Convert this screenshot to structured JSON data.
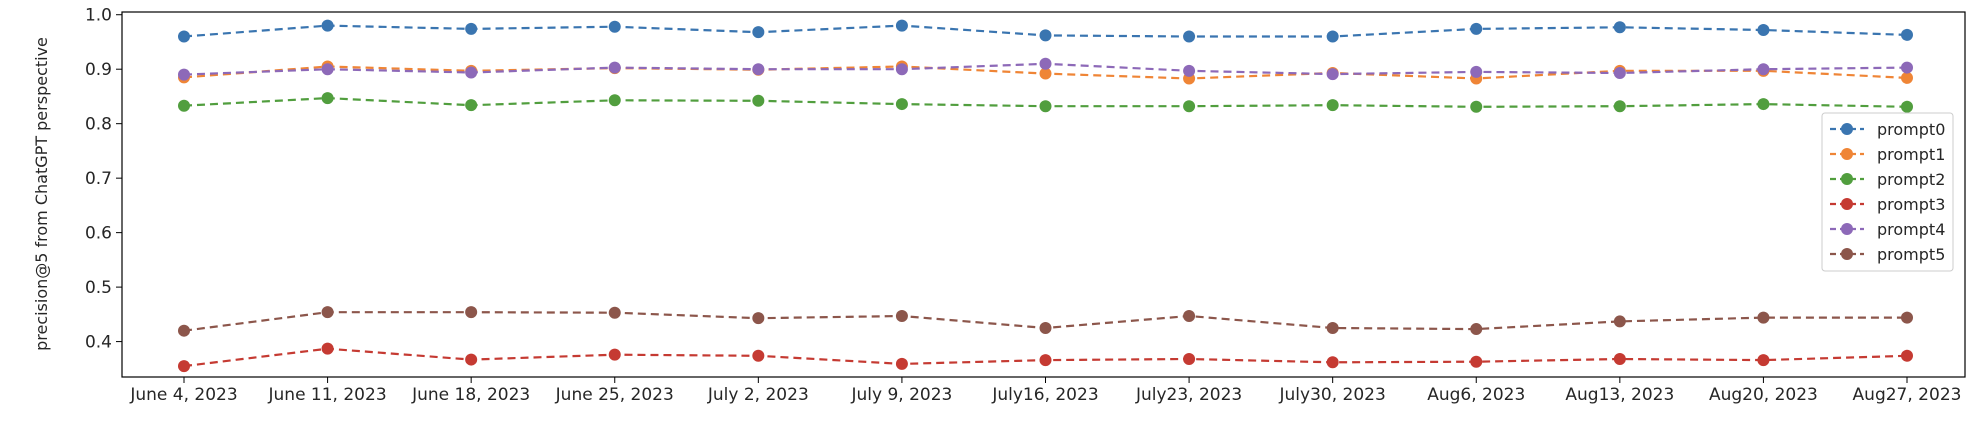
{
  "chart_data": {
    "type": "line",
    "title": "",
    "xlabel": "",
    "ylabel": "precision@5 from ChatGPT perspective",
    "categories": [
      "June 4, 2023",
      "June 11, 2023",
      "June 18, 2023",
      "June 25, 2023",
      "July 2, 2023",
      "July 9, 2023",
      "July16, 2023",
      "July23, 2023",
      "July30, 2023",
      "Aug6, 2023",
      "Aug13, 2023",
      "Aug20, 2023",
      "Aug27, 2023"
    ],
    "ylim": [
      0.335,
      1.005
    ],
    "yticks": [
      1.0,
      0.9,
      0.8,
      0.7,
      0.6,
      0.5,
      0.4
    ],
    "ytick_labels": [
      "1.0",
      "0.9",
      "0.8",
      "0.7",
      "0.6",
      "0.5",
      "0.4"
    ],
    "grid": false,
    "legend_position": "center-right",
    "line_style": "dashed",
    "marker": "circle",
    "series": [
      {
        "name": "prompt0",
        "color": "#3a75b0",
        "values": [
          0.96,
          0.98,
          0.974,
          0.978,
          0.968,
          0.98,
          0.962,
          0.96,
          0.96,
          0.974,
          0.977,
          0.972,
          0.963
        ]
      },
      {
        "name": "prompt1",
        "color": "#ef8536",
        "values": [
          0.885,
          0.905,
          0.897,
          0.902,
          0.899,
          0.905,
          0.892,
          0.883,
          0.893,
          0.883,
          0.897,
          0.897,
          0.884
        ]
      },
      {
        "name": "prompt2",
        "color": "#519e3e",
        "values": [
          0.833,
          0.847,
          0.834,
          0.843,
          0.842,
          0.836,
          0.832,
          0.832,
          0.834,
          0.831,
          0.832,
          0.836,
          0.831
        ]
      },
      {
        "name": "prompt3",
        "color": "#c53a32",
        "values": [
          0.355,
          0.387,
          0.367,
          0.376,
          0.374,
          0.359,
          0.366,
          0.368,
          0.362,
          0.363,
          0.368,
          0.366,
          0.374
        ]
      },
      {
        "name": "prompt4",
        "color": "#8d69b8",
        "values": [
          0.89,
          0.9,
          0.894,
          0.903,
          0.9,
          0.9,
          0.91,
          0.897,
          0.891,
          0.895,
          0.893,
          0.9,
          0.903
        ]
      },
      {
        "name": "prompt5",
        "color": "#8c564b",
        "values": [
          0.42,
          0.454,
          0.454,
          0.453,
          0.443,
          0.447,
          0.425,
          0.447,
          0.425,
          0.423,
          0.437,
          0.444,
          0.444
        ]
      }
    ]
  }
}
